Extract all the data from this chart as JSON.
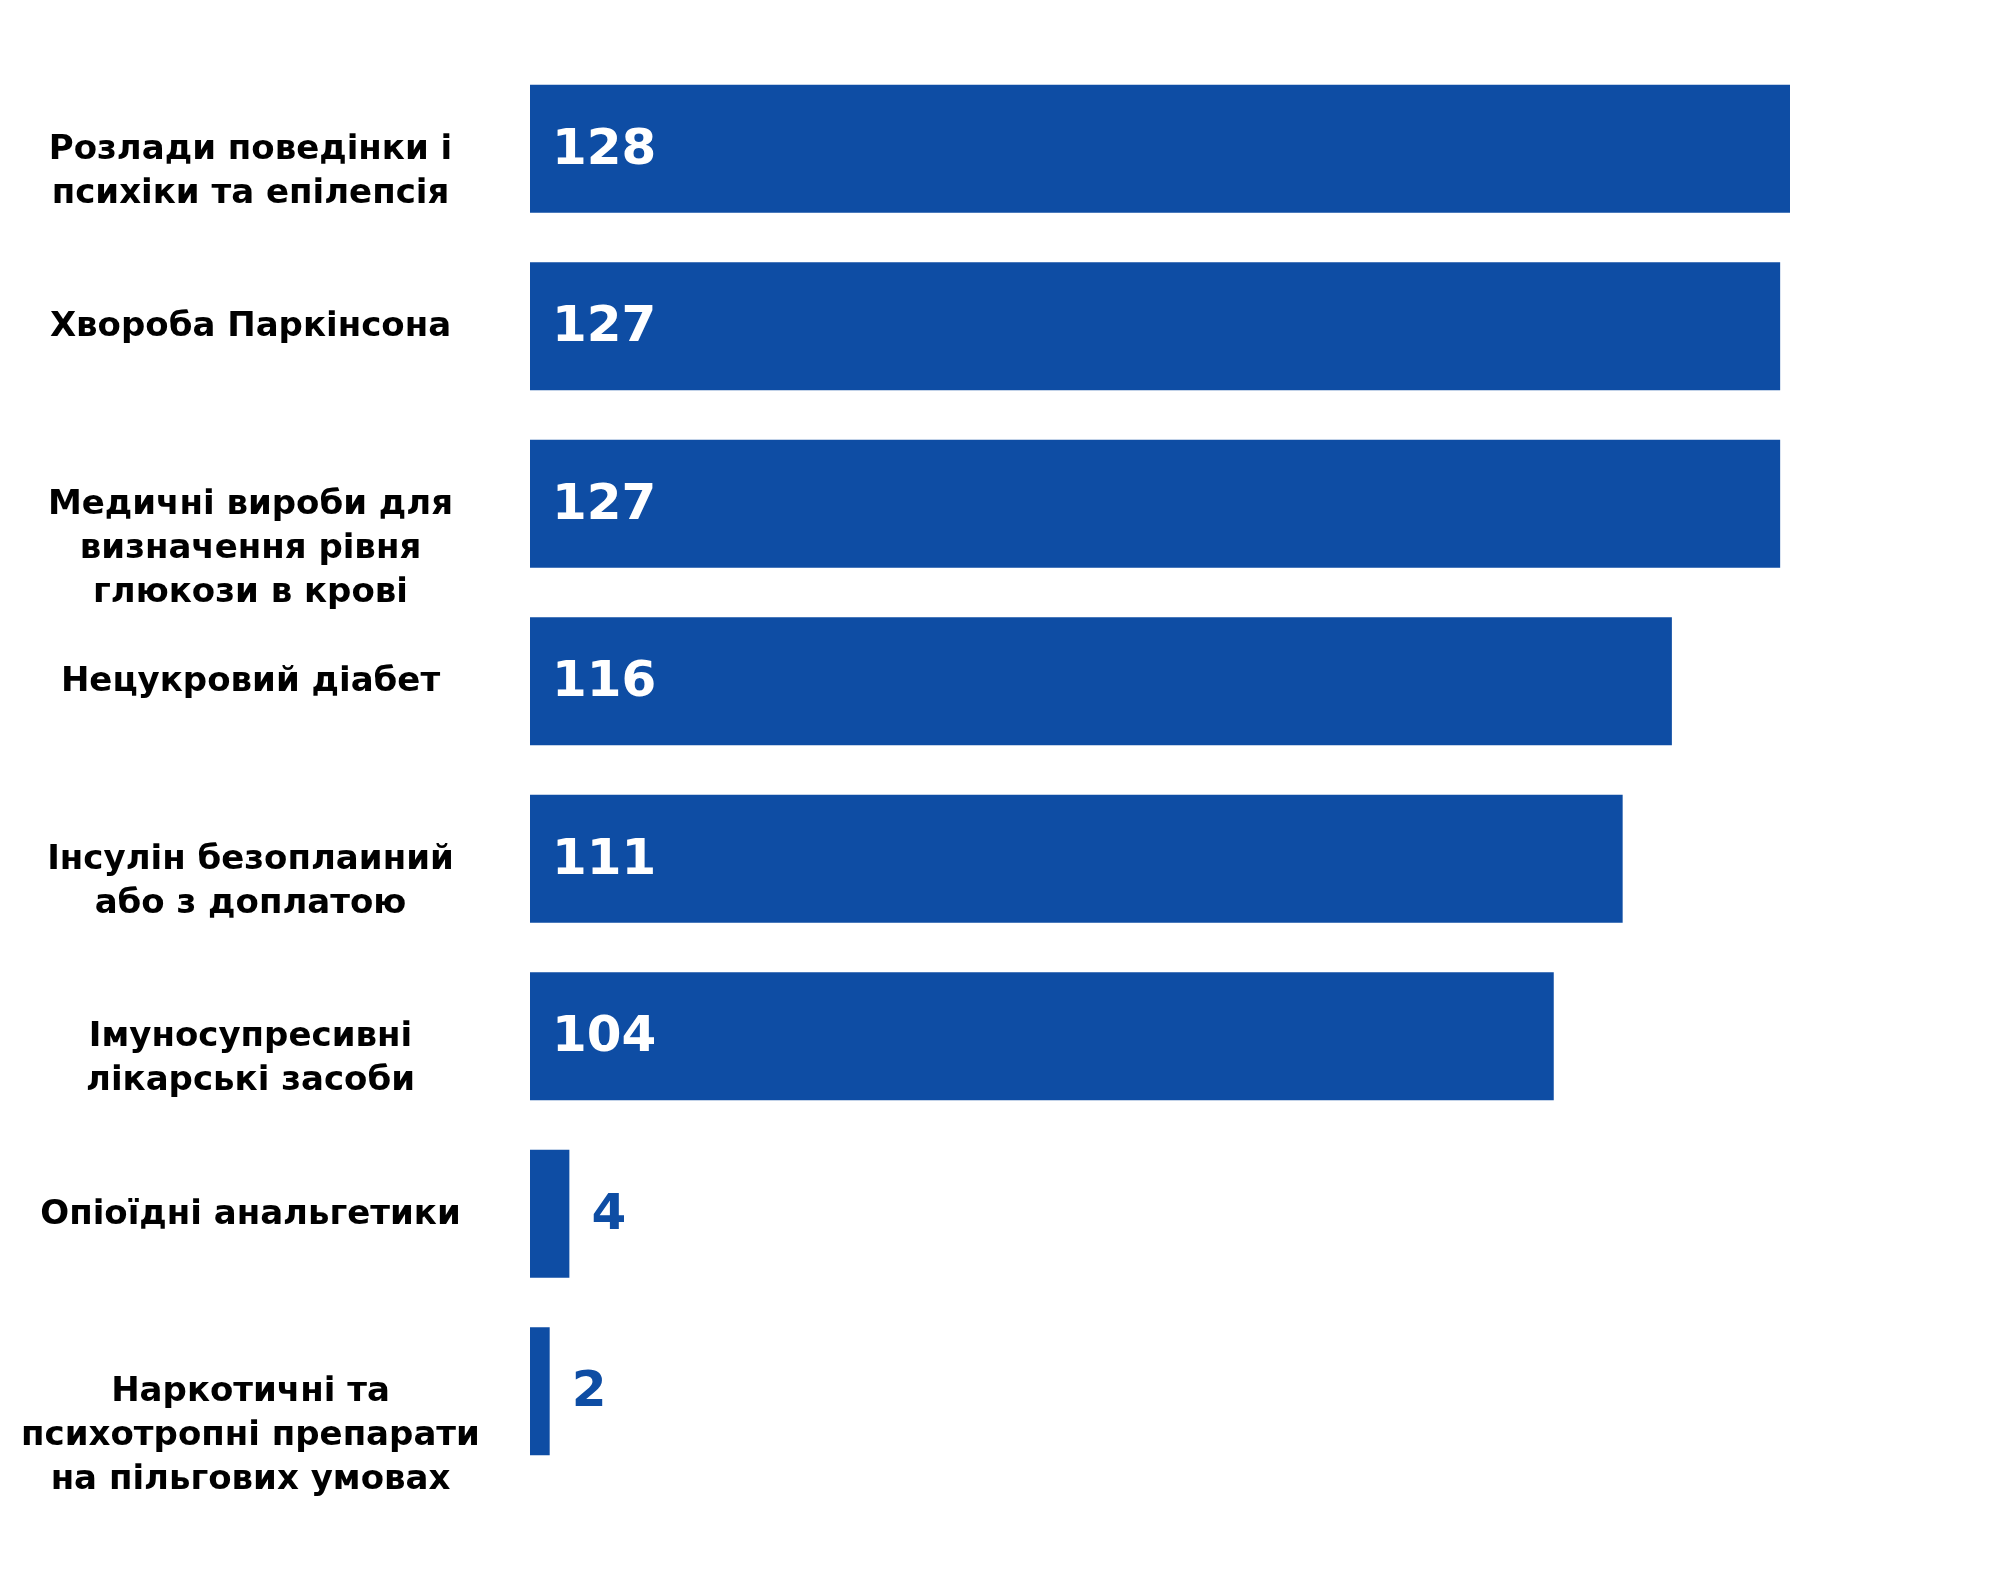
{
  "chart_data": {
    "type": "bar",
    "orientation": "horizontal",
    "data_labels": true,
    "categories": [
      "Розлади поведінки і психіки та епілепсія",
      "Хвороба Паркінсона",
      "Медичні вироби для визначення рівня глюкози в крові",
      "Нецукровий діабет",
      "Інсулін безоплаиний або з доплатою",
      "Імуносупресивні лікарські засоби",
      "Опіоїдні анальгетики",
      "Наркотичні та психотропні препарати на пільгових умовах"
    ],
    "values": [
      128,
      127,
      127,
      116,
      111,
      104,
      4,
      2
    ],
    "color": "#0e4da4"
  }
}
